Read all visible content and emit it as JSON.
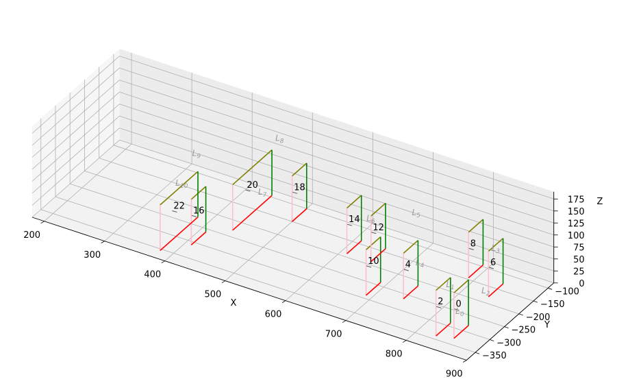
{
  "chart_data": {
    "type": "3d-line",
    "xlabel": "X",
    "ylabel": "Y",
    "zlabel": "Z",
    "xlim": [
      180,
      900
    ],
    "ylim": [
      -380,
      -80
    ],
    "zlim": [
      0,
      190
    ],
    "x_ticks": [
      "200",
      "300",
      "400",
      "500",
      "600",
      "700",
      "800",
      "900"
    ],
    "y_ticks": [
      "−100",
      "−150",
      "−200",
      "−250",
      "−300",
      "−350"
    ],
    "z_ticks": [
      "0",
      "25",
      "50",
      "75",
      "100",
      "125",
      "150",
      "175"
    ],
    "grid": true,
    "colors": {
      "top": "#808000",
      "inner": "#008000",
      "bottom": "#ff0000",
      "outer": "#ffc0cb",
      "label": "#9a9a9a"
    },
    "frames": [
      {
        "id": "0",
        "x": 855,
        "y1": -280,
        "y2": -330,
        "z": 95
      },
      {
        "id": "2",
        "x": 830,
        "y1": -290,
        "y2": -340,
        "z": 95
      },
      {
        "id": "4",
        "x": 740,
        "y1": -215,
        "y2": -265,
        "z": 95
      },
      {
        "id": "6",
        "x": 840,
        "y1": -130,
        "y2": -180,
        "z": 95
      },
      {
        "id": "8",
        "x": 790,
        "y1": -95,
        "y2": -145,
        "z": 95
      },
      {
        "id": "10",
        "x": 690,
        "y1": -240,
        "y2": -290,
        "z": 95
      },
      {
        "id": "12",
        "x": 650,
        "y1": -140,
        "y2": -190,
        "z": 95
      },
      {
        "id": "14",
        "x": 610,
        "y1": -140,
        "y2": -190,
        "z": 95
      },
      {
        "id": "16",
        "x": 410,
        "y1": -260,
        "y2": -310,
        "z": 95
      },
      {
        "id": "18",
        "x": 500,
        "y1": -100,
        "y2": -150,
        "z": 95
      },
      {
        "id": "20",
        "x": 440,
        "y1": -95,
        "y2": -230,
        "z": 95
      },
      {
        "id": "22",
        "x": 380,
        "y1": -225,
        "y2": -355,
        "z": 95
      }
    ],
    "segment_labels": [
      "L0",
      "L1",
      "L2",
      "L3",
      "L4",
      "L5",
      "L6",
      "L7",
      "L8",
      "L9",
      "L10"
    ]
  }
}
